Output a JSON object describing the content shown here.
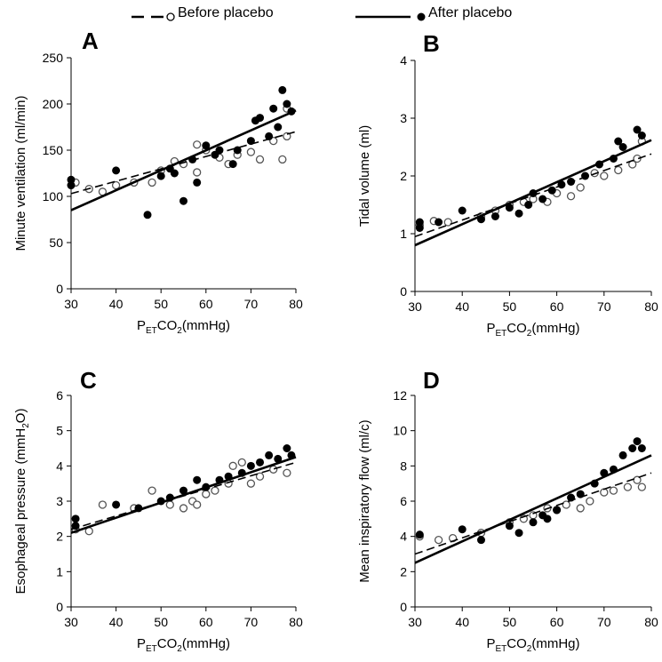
{
  "legend": {
    "before_label": "Before placebo",
    "after_label": "After placebo"
  },
  "colors": {
    "ink": "#000000",
    "open_marker_edge": "#555555"
  },
  "chart_data": [
    {
      "panel": "A",
      "type": "scatter",
      "xlabel_main": "P",
      "xlabel_sub": "ET",
      "xlabel_rest": "CO",
      "xlabel_sub2": "2",
      "xlabel_tail": "(mmHg)",
      "ylabel": "Minute ventilation (ml/min)",
      "xlim": [
        30,
        80
      ],
      "ylim": [
        0,
        250
      ],
      "xticks": [
        30,
        40,
        50,
        60,
        70,
        80
      ],
      "yticks": [
        0,
        50,
        100,
        150,
        200,
        250
      ],
      "series": [
        {
          "name": "Before placebo",
          "marker": "open",
          "line": "dashed",
          "fit": [
            [
              30,
              103
            ],
            [
              80,
              170
            ]
          ],
          "points": [
            [
              31,
              115
            ],
            [
              34,
              108
            ],
            [
              37,
              105
            ],
            [
              40,
              112
            ],
            [
              44,
              115
            ],
            [
              48,
              115
            ],
            [
              50,
              128
            ],
            [
              53,
              138
            ],
            [
              55,
              135
            ],
            [
              58,
              126
            ],
            [
              58,
              156
            ],
            [
              60,
              150
            ],
            [
              63,
              142
            ],
            [
              65,
              135
            ],
            [
              67,
              145
            ],
            [
              70,
              148
            ],
            [
              72,
              140
            ],
            [
              75,
              160
            ],
            [
              77,
              140
            ],
            [
              78,
              165
            ],
            [
              78,
              195
            ]
          ]
        },
        {
          "name": "After placebo",
          "marker": "filled",
          "line": "solid",
          "fit": [
            [
              30,
              85
            ],
            [
              80,
              193
            ]
          ],
          "points": [
            [
              30,
              112
            ],
            [
              30,
              118
            ],
            [
              40,
              128
            ],
            [
              47,
              80
            ],
            [
              50,
              122
            ],
            [
              52,
              130
            ],
            [
              53,
              125
            ],
            [
              55,
              95
            ],
            [
              57,
              140
            ],
            [
              58,
              115
            ],
            [
              60,
              155
            ],
            [
              62,
              145
            ],
            [
              63,
              150
            ],
            [
              66,
              135
            ],
            [
              67,
              150
            ],
            [
              70,
              160
            ],
            [
              71,
              182
            ],
            [
              72,
              185
            ],
            [
              74,
              165
            ],
            [
              75,
              195
            ],
            [
              76,
              175
            ],
            [
              77,
              215
            ],
            [
              78,
              200
            ],
            [
              79,
              192
            ]
          ]
        }
      ]
    },
    {
      "panel": "B",
      "type": "scatter",
      "xlabel_main": "P",
      "xlabel_sub": "ET",
      "xlabel_rest": "CO",
      "xlabel_sub2": "2",
      "xlabel_tail": "(mmHg)",
      "ylabel": "Tidal volume (ml)",
      "xlim": [
        30,
        80
      ],
      "ylim": [
        0,
        4
      ],
      "xticks": [
        30,
        40,
        50,
        60,
        70,
        80
      ],
      "yticks": [
        0,
        1,
        2,
        3,
        4
      ],
      "series": [
        {
          "name": "Before placebo",
          "marker": "open",
          "line": "dashed",
          "fit": [
            [
              30,
              0.95
            ],
            [
              80,
              2.38
            ]
          ],
          "points": [
            [
              31,
              1.15
            ],
            [
              34,
              1.22
            ],
            [
              37,
              1.2
            ],
            [
              44,
              1.3
            ],
            [
              47,
              1.4
            ],
            [
              50,
              1.5
            ],
            [
              53,
              1.55
            ],
            [
              55,
              1.6
            ],
            [
              58,
              1.55
            ],
            [
              60,
              1.7
            ],
            [
              63,
              1.65
            ],
            [
              65,
              1.8
            ],
            [
              68,
              2.05
            ],
            [
              70,
              2.0
            ],
            [
              73,
              2.1
            ],
            [
              76,
              2.2
            ],
            [
              77,
              2.3
            ],
            [
              78,
              2.6
            ]
          ]
        },
        {
          "name": "After placebo",
          "marker": "filled",
          "line": "solid",
          "fit": [
            [
              30,
              0.8
            ],
            [
              80,
              2.62
            ]
          ],
          "points": [
            [
              31,
              1.2
            ],
            [
              31,
              1.1
            ],
            [
              35,
              1.2
            ],
            [
              40,
              1.4
            ],
            [
              44,
              1.25
            ],
            [
              47,
              1.3
            ],
            [
              50,
              1.45
            ],
            [
              52,
              1.35
            ],
            [
              54,
              1.5
            ],
            [
              55,
              1.7
            ],
            [
              57,
              1.6
            ],
            [
              59,
              1.75
            ],
            [
              61,
              1.85
            ],
            [
              63,
              1.9
            ],
            [
              66,
              2.0
            ],
            [
              69,
              2.2
            ],
            [
              72,
              2.3
            ],
            [
              73,
              2.6
            ],
            [
              74,
              2.5
            ],
            [
              77,
              2.8
            ],
            [
              78,
              2.7
            ]
          ]
        }
      ]
    },
    {
      "panel": "C",
      "type": "scatter",
      "xlabel_main": "P",
      "xlabel_sub": "ET",
      "xlabel_rest": "CO",
      "xlabel_sub2": "2",
      "xlabel_tail": "(mmHg)",
      "ylabel_main": "Esophageal pressure (mmH",
      "ylabel_sub": "2",
      "ylabel_tail": "O)",
      "xlim": [
        30,
        80
      ],
      "ylim": [
        0,
        6
      ],
      "xticks": [
        30,
        40,
        50,
        60,
        70,
        80
      ],
      "yticks": [
        0,
        1,
        2,
        3,
        4,
        5,
        6
      ],
      "series": [
        {
          "name": "Before placebo",
          "marker": "open",
          "line": "dashed",
          "fit": [
            [
              30,
              2.2
            ],
            [
              80,
              4.1
            ]
          ],
          "points": [
            [
              31,
              2.2
            ],
            [
              34,
              2.15
            ],
            [
              37,
              2.9
            ],
            [
              44,
              2.8
            ],
            [
              48,
              3.3
            ],
            [
              52,
              2.9
            ],
            [
              55,
              2.8
            ],
            [
              57,
              3.0
            ],
            [
              58,
              2.9
            ],
            [
              60,
              3.2
            ],
            [
              62,
              3.3
            ],
            [
              65,
              3.5
            ],
            [
              66,
              4.0
            ],
            [
              68,
              4.1
            ],
            [
              70,
              3.5
            ],
            [
              72,
              3.7
            ],
            [
              75,
              3.9
            ],
            [
              78,
              3.8
            ]
          ]
        },
        {
          "name": "After placebo",
          "marker": "filled",
          "line": "solid",
          "fit": [
            [
              30,
              2.1
            ],
            [
              80,
              4.25
            ]
          ],
          "points": [
            [
              31,
              2.5
            ],
            [
              31,
              2.3
            ],
            [
              40,
              2.9
            ],
            [
              45,
              2.8
            ],
            [
              50,
              3.0
            ],
            [
              52,
              3.1
            ],
            [
              55,
              3.3
            ],
            [
              58,
              3.6
            ],
            [
              60,
              3.4
            ],
            [
              63,
              3.6
            ],
            [
              65,
              3.7
            ],
            [
              68,
              3.8
            ],
            [
              70,
              4.0
            ],
            [
              72,
              4.1
            ],
            [
              74,
              4.3
            ],
            [
              76,
              4.2
            ],
            [
              78,
              4.5
            ],
            [
              79,
              4.3
            ]
          ]
        }
      ]
    },
    {
      "panel": "D",
      "type": "scatter",
      "xlabel_main": "P",
      "xlabel_sub": "ET",
      "xlabel_rest": "CO",
      "xlabel_sub2": "2",
      "xlabel_tail": "(mmHg)",
      "ylabel": "Mean inspiratory flow (ml/c)",
      "xlim": [
        30,
        80
      ],
      "ylim": [
        0,
        12
      ],
      "xticks": [
        30,
        40,
        50,
        60,
        70,
        80
      ],
      "yticks": [
        0,
        2,
        4,
        6,
        8,
        10,
        12
      ],
      "series": [
        {
          "name": "Before placebo",
          "marker": "open",
          "line": "dashed",
          "fit": [
            [
              30,
              3.0
            ],
            [
              80,
              7.6
            ]
          ],
          "points": [
            [
              31,
              4.0
            ],
            [
              35,
              3.8
            ],
            [
              38,
              3.9
            ],
            [
              44,
              4.2
            ],
            [
              50,
              4.8
            ],
            [
              53,
              5.0
            ],
            [
              55,
              5.2
            ],
            [
              58,
              5.6
            ],
            [
              60,
              5.5
            ],
            [
              62,
              5.8
            ],
            [
              65,
              5.6
            ],
            [
              67,
              6.0
            ],
            [
              70,
              6.5
            ],
            [
              72,
              6.6
            ],
            [
              75,
              6.8
            ],
            [
              77,
              7.2
            ],
            [
              78,
              6.8
            ]
          ]
        },
        {
          "name": "After placebo",
          "marker": "filled",
          "line": "solid",
          "fit": [
            [
              30,
              2.5
            ],
            [
              80,
              8.6
            ]
          ],
          "points": [
            [
              31,
              4.1
            ],
            [
              40,
              4.4
            ],
            [
              44,
              3.8
            ],
            [
              50,
              4.6
            ],
            [
              52,
              4.2
            ],
            [
              55,
              4.8
            ],
            [
              57,
              5.2
            ],
            [
              58,
              5.0
            ],
            [
              60,
              5.5
            ],
            [
              63,
              6.2
            ],
            [
              65,
              6.4
            ],
            [
              68,
              7.0
            ],
            [
              70,
              7.6
            ],
            [
              72,
              7.8
            ],
            [
              74,
              8.6
            ],
            [
              76,
              9.0
            ],
            [
              77,
              9.4
            ],
            [
              78,
              9.0
            ]
          ]
        }
      ]
    }
  ]
}
